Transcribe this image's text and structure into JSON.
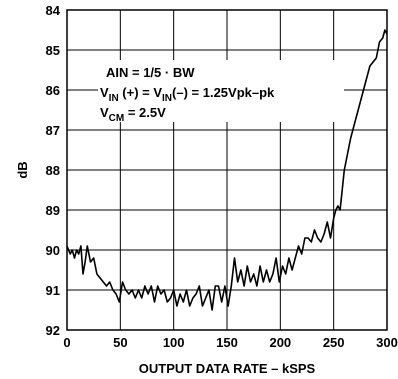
{
  "chart_data": {
    "type": "line",
    "xlabel": "OUTPUT DATA RATE – kSPS",
    "ylabel": "dB",
    "xlim": [
      0,
      300
    ],
    "ylim": [
      84,
      92
    ],
    "y_inverted": true,
    "grid": true,
    "x_ticks": [
      "0",
      "50",
      "100",
      "150",
      "200",
      "250",
      "300"
    ],
    "y_ticks": [
      "84",
      "85",
      "86",
      "87",
      "88",
      "89",
      "90",
      "91",
      "92"
    ],
    "annotations": {
      "line1": "AIN = 1/5 · BW",
      "line2_main": "V",
      "line2_sub1": "IN",
      "line2_mid": " (+) = V",
      "line2_sub2": "IN",
      "line2_end": "(–) = 1.25Vpk–pk",
      "line3_main": "V",
      "line3_sub": "CM",
      "line3_end": " = 2.5V"
    },
    "series": [
      {
        "x": [
          0,
          3,
          5,
          7,
          9,
          11,
          13,
          15,
          17,
          19,
          22,
          25,
          28,
          31,
          34,
          37,
          40,
          43,
          46,
          49,
          52,
          55,
          58,
          61,
          64,
          67,
          70,
          73,
          76,
          79,
          82,
          85,
          88,
          91,
          94,
          97,
          100,
          103,
          106,
          109,
          112,
          115,
          118,
          121,
          124,
          127,
          130,
          133,
          136,
          139,
          142,
          145,
          148,
          151,
          154,
          157,
          160,
          163,
          166,
          169,
          172,
          175,
          178,
          181,
          184,
          187,
          190,
          193,
          196,
          199,
          202,
          205,
          208,
          211,
          214,
          217,
          220,
          223,
          226,
          229,
          232,
          235,
          238,
          241,
          244,
          247,
          250,
          252,
          254,
          256,
          258,
          260,
          263,
          266,
          269,
          272,
          275,
          278,
          281,
          284,
          287,
          290,
          293,
          296,
          298,
          300
        ],
        "values": [
          89.9,
          90.1,
          90.0,
          90.2,
          90.0,
          90.1,
          89.9,
          90.6,
          90.3,
          89.9,
          90.3,
          90.2,
          90.6,
          90.7,
          90.8,
          90.9,
          90.8,
          91.0,
          91.1,
          91.3,
          90.8,
          91.0,
          91.1,
          91.0,
          91.2,
          91.0,
          91.2,
          90.9,
          91.1,
          90.9,
          91.3,
          90.9,
          91.1,
          91.0,
          91.3,
          91.2,
          91.0,
          91.4,
          91.1,
          91.3,
          91.0,
          91.4,
          91.2,
          91.1,
          90.9,
          91.4,
          91.2,
          91.0,
          91.5,
          90.9,
          90.9,
          91.3,
          90.9,
          91.4,
          90.9,
          90.2,
          90.8,
          90.5,
          90.9,
          90.4,
          90.8,
          90.6,
          90.9,
          90.4,
          90.8,
          90.5,
          90.8,
          90.6,
          90.2,
          90.8,
          90.4,
          90.6,
          90.2,
          90.5,
          90.2,
          89.9,
          90.1,
          89.7,
          89.7,
          89.8,
          89.5,
          89.7,
          89.8,
          89.6,
          89.3,
          89.7,
          89.2,
          89.0,
          88.9,
          89.0,
          88.5,
          88.0,
          87.6,
          87.2,
          86.9,
          86.6,
          86.3,
          86.0,
          85.7,
          85.4,
          85.3,
          85.2,
          84.8,
          84.7,
          84.5,
          84.6
        ]
      }
    ]
  }
}
